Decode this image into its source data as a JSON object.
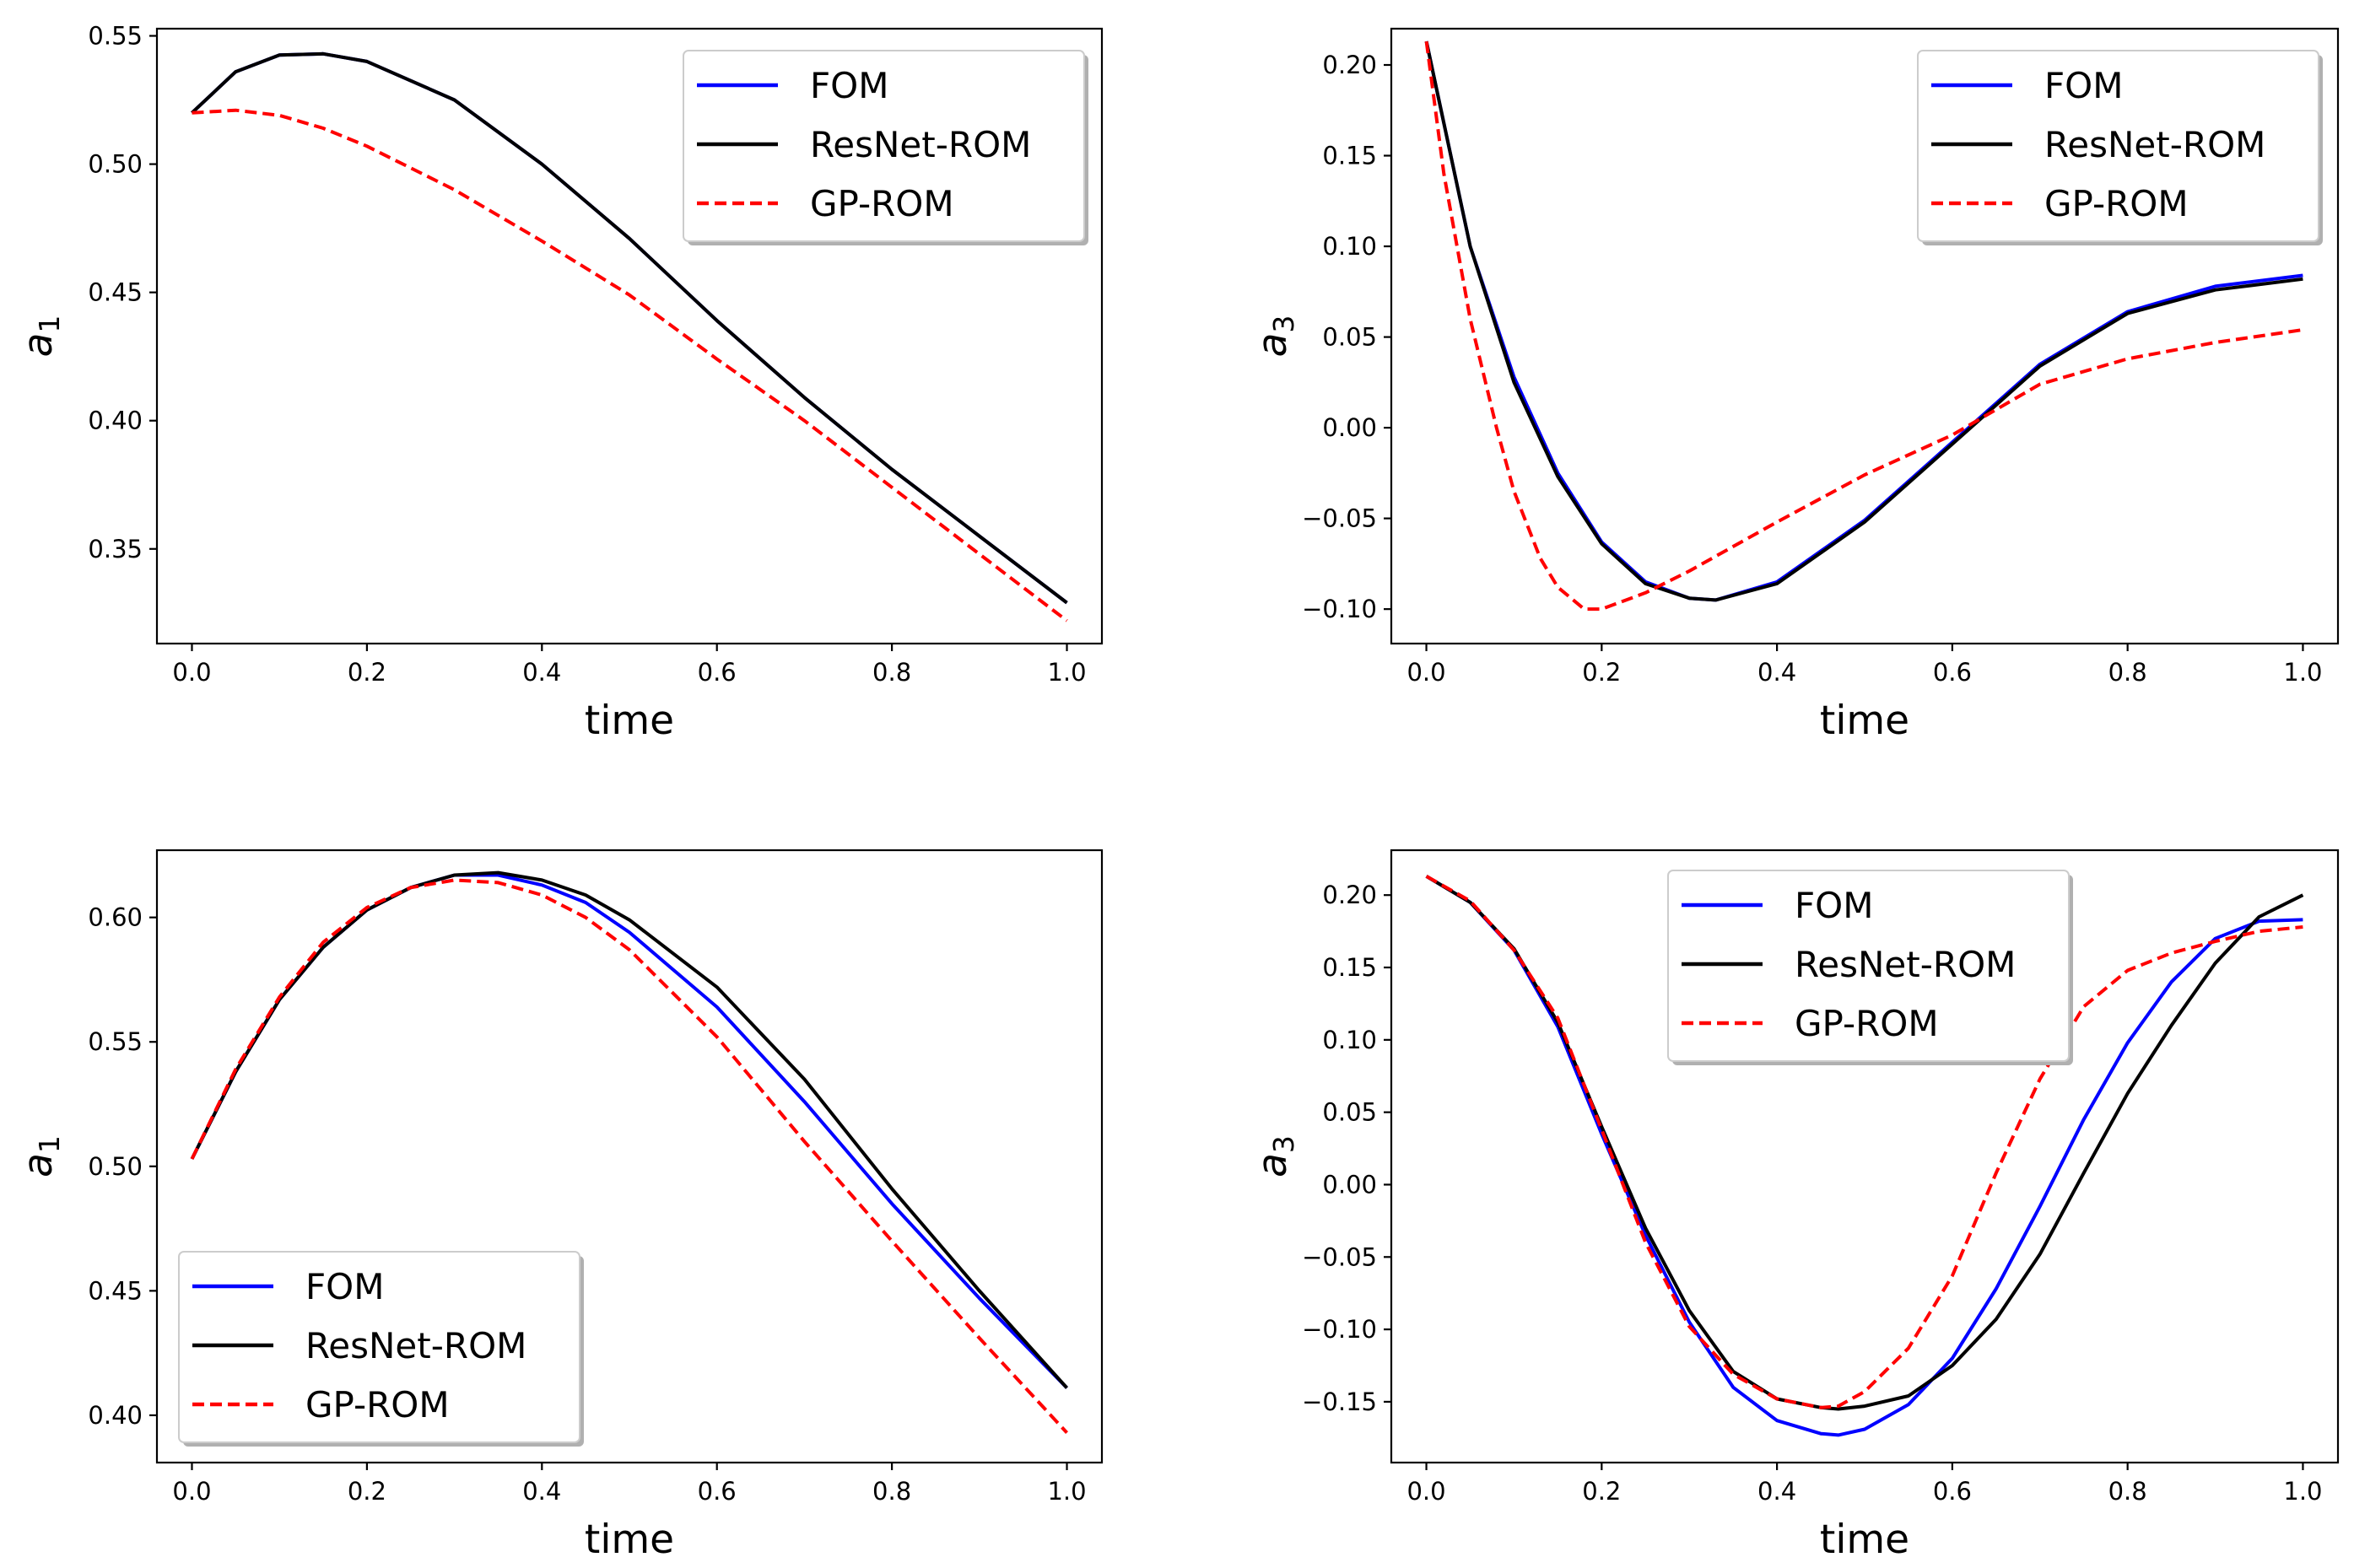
{
  "chart_data": [
    {
      "type": "line",
      "xlabel": "time",
      "ylabel": "a",
      "ylabel_sub": "1",
      "xlim": [
        -0.04,
        1.04
      ],
      "ylim": [
        0.3131,
        0.5528
      ],
      "xticks": [
        0.0,
        0.2,
        0.4,
        0.6,
        0.8,
        1.0
      ],
      "xtick_labels": [
        "0.0",
        "0.2",
        "0.4",
        "0.6",
        "0.8",
        "1.0"
      ],
      "yticks": [
        0.35,
        0.4,
        0.45,
        0.5,
        0.55
      ],
      "ytick_labels": [
        "0.35",
        "0.40",
        "0.45",
        "0.50",
        "0.55"
      ],
      "legend_position": "upper-right",
      "series": [
        {
          "name": "FOM",
          "color": "#0000ff",
          "dash": "solid",
          "x": [
            0.0,
            0.05,
            0.1,
            0.15,
            0.2,
            0.3,
            0.4,
            0.5,
            0.6,
            0.7,
            0.8,
            0.9,
            1.0
          ],
          "y": [
            0.52,
            0.536,
            0.5425,
            0.543,
            0.54,
            0.525,
            0.5,
            0.471,
            0.439,
            0.409,
            0.381,
            0.355,
            0.329
          ]
        },
        {
          "name": "ResNet-ROM",
          "color": "#000000",
          "dash": "solid",
          "x": [
            0.0,
            0.05,
            0.1,
            0.15,
            0.2,
            0.3,
            0.4,
            0.5,
            0.6,
            0.7,
            0.8,
            0.9,
            1.0
          ],
          "y": [
            0.52,
            0.536,
            0.5425,
            0.543,
            0.54,
            0.525,
            0.5,
            0.471,
            0.439,
            0.409,
            0.381,
            0.355,
            0.329
          ]
        },
        {
          "name": "GP-ROM",
          "color": "#ff0000",
          "dash": "dashed",
          "x": [
            0.0,
            0.05,
            0.1,
            0.15,
            0.2,
            0.3,
            0.4,
            0.5,
            0.6,
            0.7,
            0.8,
            0.9,
            1.0
          ],
          "y": [
            0.52,
            0.521,
            0.519,
            0.514,
            0.507,
            0.49,
            0.47,
            0.449,
            0.424,
            0.4,
            0.374,
            0.348,
            0.322
          ]
        }
      ]
    },
    {
      "type": "line",
      "xlabel": "time",
      "ylabel": "a",
      "ylabel_sub": "3",
      "xlim": [
        -0.04,
        1.04
      ],
      "ylim": [
        -0.119,
        0.22
      ],
      "xticks": [
        0.0,
        0.2,
        0.4,
        0.6,
        0.8,
        1.0
      ],
      "xtick_labels": [
        "0.0",
        "0.2",
        "0.4",
        "0.6",
        "0.8",
        "1.0"
      ],
      "yticks": [
        -0.1,
        -0.05,
        0.0,
        0.05,
        0.1,
        0.15,
        0.2
      ],
      "ytick_labels": [
        "−0.10",
        "−0.05",
        "0.00",
        "0.05",
        "0.10",
        "0.15",
        "0.20"
      ],
      "legend_position": "upper-right",
      "series": [
        {
          "name": "FOM",
          "color": "#0000ff",
          "dash": "solid",
          "x": [
            0.0,
            0.05,
            0.1,
            0.15,
            0.2,
            0.25,
            0.3,
            0.33,
            0.4,
            0.5,
            0.6,
            0.7,
            0.8,
            0.9,
            1.0
          ],
          "y": [
            0.213,
            0.1,
            0.028,
            -0.025,
            -0.063,
            -0.085,
            -0.094,
            -0.095,
            -0.085,
            -0.051,
            -0.008,
            0.035,
            0.064,
            0.078,
            0.084
          ]
        },
        {
          "name": "ResNet-ROM",
          "color": "#000000",
          "dash": "solid",
          "x": [
            0.0,
            0.05,
            0.1,
            0.15,
            0.2,
            0.25,
            0.3,
            0.33,
            0.4,
            0.5,
            0.6,
            0.7,
            0.8,
            0.9,
            1.0
          ],
          "y": [
            0.213,
            0.1,
            0.025,
            -0.027,
            -0.064,
            -0.086,
            -0.094,
            -0.095,
            -0.086,
            -0.052,
            -0.009,
            0.034,
            0.063,
            0.076,
            0.082
          ]
        },
        {
          "name": "GP-ROM",
          "color": "#ff0000",
          "dash": "dashed",
          "x": [
            0.0,
            0.02,
            0.05,
            0.08,
            0.1,
            0.13,
            0.15,
            0.18,
            0.2,
            0.25,
            0.3,
            0.4,
            0.5,
            0.6,
            0.7,
            0.8,
            0.9,
            1.0
          ],
          "y": [
            0.213,
            0.14,
            0.06,
            0.0,
            -0.035,
            -0.072,
            -0.088,
            -0.1,
            -0.1,
            -0.091,
            -0.079,
            -0.052,
            -0.026,
            -0.004,
            0.024,
            0.038,
            0.047,
            0.054
          ]
        }
      ]
    },
    {
      "type": "line",
      "xlabel": "time",
      "ylabel": "a",
      "ylabel_sub": "1",
      "xlim": [
        -0.04,
        1.04
      ],
      "ylim": [
        0.381,
        0.627
      ],
      "xticks": [
        0.0,
        0.2,
        0.4,
        0.6,
        0.8,
        1.0
      ],
      "xtick_labels": [
        "0.0",
        "0.2",
        "0.4",
        "0.6",
        "0.8",
        "1.0"
      ],
      "yticks": [
        0.4,
        0.45,
        0.5,
        0.55,
        0.6
      ],
      "ytick_labels": [
        "0.40",
        "0.45",
        "0.50",
        "0.55",
        "0.60"
      ],
      "legend_position": "lower-left",
      "series": [
        {
          "name": "FOM",
          "color": "#0000ff",
          "dash": "solid",
          "x": [
            0.0,
            0.05,
            0.1,
            0.15,
            0.2,
            0.25,
            0.3,
            0.35,
            0.4,
            0.45,
            0.5,
            0.6,
            0.7,
            0.8,
            0.9,
            1.0
          ],
          "y": [
            0.503,
            0.538,
            0.567,
            0.588,
            0.603,
            0.612,
            0.617,
            0.617,
            0.613,
            0.606,
            0.594,
            0.564,
            0.526,
            0.485,
            0.447,
            0.411
          ]
        },
        {
          "name": "ResNet-ROM",
          "color": "#000000",
          "dash": "solid",
          "x": [
            0.0,
            0.05,
            0.1,
            0.15,
            0.2,
            0.25,
            0.3,
            0.35,
            0.4,
            0.45,
            0.5,
            0.6,
            0.7,
            0.8,
            0.9,
            1.0
          ],
          "y": [
            0.503,
            0.538,
            0.567,
            0.588,
            0.603,
            0.612,
            0.617,
            0.618,
            0.615,
            0.609,
            0.599,
            0.572,
            0.535,
            0.491,
            0.45,
            0.411
          ]
        },
        {
          "name": "GP-ROM",
          "color": "#ff0000",
          "dash": "dashed",
          "x": [
            0.0,
            0.05,
            0.1,
            0.15,
            0.2,
            0.25,
            0.3,
            0.35,
            0.4,
            0.45,
            0.5,
            0.6,
            0.7,
            0.8,
            0.9,
            1.0
          ],
          "y": [
            0.503,
            0.539,
            0.568,
            0.59,
            0.604,
            0.612,
            0.615,
            0.614,
            0.609,
            0.6,
            0.587,
            0.552,
            0.51,
            0.47,
            0.431,
            0.393
          ]
        }
      ]
    },
    {
      "type": "line",
      "xlabel": "time",
      "ylabel": "a",
      "ylabel_sub": "3",
      "xlim": [
        -0.04,
        1.04
      ],
      "ylim": [
        -0.192,
        0.231
      ],
      "xticks": [
        0.0,
        0.2,
        0.4,
        0.6,
        0.8,
        1.0
      ],
      "xtick_labels": [
        "0.0",
        "0.2",
        "0.4",
        "0.6",
        "0.8",
        "1.0"
      ],
      "yticks": [
        -0.15,
        -0.1,
        -0.05,
        0.0,
        0.05,
        0.1,
        0.15,
        0.2
      ],
      "ytick_labels": [
        "−0.15",
        "−0.10",
        "−0.05",
        "0.00",
        "0.05",
        "0.10",
        "0.15",
        "0.20"
      ],
      "legend_position": "upper-center",
      "series": [
        {
          "name": "FOM",
          "color": "#0000ff",
          "dash": "solid",
          "x": [
            0.0,
            0.05,
            0.1,
            0.15,
            0.2,
            0.25,
            0.3,
            0.35,
            0.4,
            0.45,
            0.47,
            0.5,
            0.55,
            0.6,
            0.65,
            0.7,
            0.75,
            0.8,
            0.85,
            0.9,
            0.95,
            1.0
          ],
          "y": [
            0.213,
            0.195,
            0.162,
            0.109,
            0.035,
            -0.035,
            -0.095,
            -0.14,
            -0.163,
            -0.172,
            -0.173,
            -0.169,
            -0.152,
            -0.12,
            -0.072,
            -0.015,
            0.045,
            0.098,
            0.14,
            0.17,
            0.182,
            0.183
          ]
        },
        {
          "name": "ResNet-ROM",
          "color": "#000000",
          "dash": "solid",
          "x": [
            0.0,
            0.05,
            0.1,
            0.15,
            0.2,
            0.25,
            0.3,
            0.35,
            0.4,
            0.45,
            0.47,
            0.5,
            0.55,
            0.6,
            0.65,
            0.7,
            0.75,
            0.8,
            0.85,
            0.9,
            0.95,
            1.0
          ],
          "y": [
            0.213,
            0.195,
            0.163,
            0.112,
            0.04,
            -0.03,
            -0.087,
            -0.129,
            -0.148,
            -0.154,
            -0.155,
            -0.153,
            -0.146,
            -0.125,
            -0.093,
            -0.048,
            0.008,
            0.063,
            0.11,
            0.153,
            0.185,
            0.2
          ]
        },
        {
          "name": "GP-ROM",
          "color": "#ff0000",
          "dash": "dashed",
          "x": [
            0.0,
            0.05,
            0.1,
            0.15,
            0.2,
            0.25,
            0.3,
            0.35,
            0.4,
            0.45,
            0.47,
            0.5,
            0.55,
            0.6,
            0.65,
            0.7,
            0.75,
            0.8,
            0.85,
            0.9,
            0.95,
            1.0
          ],
          "y": [
            0.213,
            0.196,
            0.162,
            0.115,
            0.038,
            -0.04,
            -0.098,
            -0.131,
            -0.148,
            -0.154,
            -0.153,
            -0.143,
            -0.113,
            -0.063,
            0.008,
            0.073,
            0.123,
            0.148,
            0.16,
            0.168,
            0.175,
            0.178
          ]
        }
      ]
    }
  ]
}
